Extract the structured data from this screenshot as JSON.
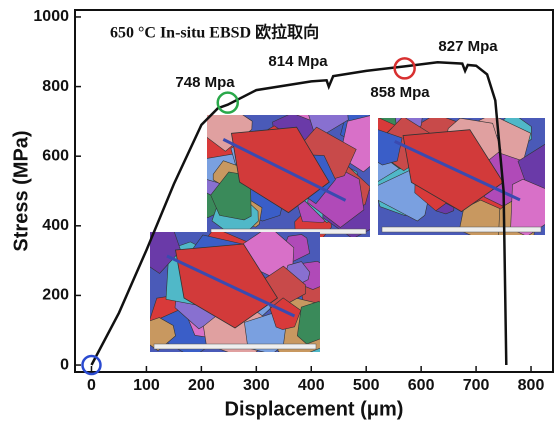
{
  "chart_data": {
    "type": "line",
    "title": "650 °C In-situ EBSD 欧拉取向",
    "x_label": "Displacement (μm)",
    "y_label": "Stress (MPa)",
    "x": [
      0,
      50,
      100,
      150,
      200,
      230,
      248,
      300,
      400,
      428,
      432,
      440,
      500,
      570,
      630,
      675,
      680,
      685,
      700,
      720,
      735,
      750,
      755
    ],
    "values": [
      0,
      150,
      330,
      520,
      690,
      738,
      748,
      790,
      815,
      818,
      800,
      830,
      845,
      858,
      870,
      866,
      845,
      862,
      860,
      835,
      760,
      500,
      0
    ],
    "color": "#111111",
    "annotations": [
      "748 Mpa",
      "814 Mpa",
      "858 Mpa",
      "827 Mpa"
    ],
    "xlim": [
      -30,
      840
    ],
    "xticks": [
      0,
      100,
      200,
      300,
      400,
      500,
      600,
      700,
      800
    ],
    "ylim": [
      -20,
      1020
    ],
    "yticks": [
      0,
      200,
      400,
      600,
      800,
      1000
    ]
  }
}
